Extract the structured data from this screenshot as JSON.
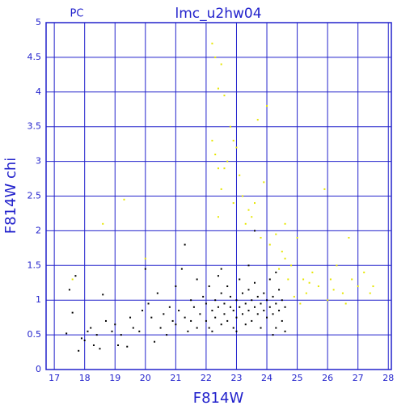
{
  "chart_data": {
    "type": "scatter",
    "title": "lmc_u2hw04",
    "subtitle": "PC",
    "x_label": "F814W",
    "y_label": "F814W chi",
    "xlim": [
      16.73,
      28.1
    ],
    "ylim": [
      0,
      5
    ],
    "xticks": [
      17,
      18,
      19,
      20,
      21,
      22,
      23,
      24,
      25,
      26,
      27,
      28
    ],
    "yticks": [
      0,
      0.5,
      1,
      1.5,
      2,
      2.5,
      3,
      3.5,
      4,
      4.5,
      5
    ],
    "grid": true,
    "grid_color": "#2222cc",
    "series": [
      {
        "color": "#000000",
        "x": [
          17.4,
          17.5,
          17.6,
          17.7,
          17.8,
          17.9,
          18.0,
          18.1,
          18.2,
          18.3,
          18.4,
          18.5,
          18.6,
          18.7,
          18.9,
          19.0,
          19.1,
          19.2,
          19.4,
          19.5,
          19.6,
          19.8,
          19.9,
          20.0,
          20.1,
          20.2,
          20.3,
          20.4,
          20.5,
          20.6,
          20.7,
          20.8,
          20.9,
          21.0,
          21.0,
          21.1,
          21.2,
          21.3,
          21.3,
          21.4,
          21.5,
          21.5,
          21.6,
          21.7,
          21.7,
          21.8,
          21.9,
          22.0,
          22.0,
          22.1,
          22.1,
          22.2,
          22.3,
          22.3,
          22.4,
          22.4,
          22.5,
          22.5,
          22.6,
          22.6,
          22.7,
          22.7,
          22.8,
          22.8,
          22.9,
          22.9,
          23.0,
          23.0,
          23.1,
          23.1,
          23.2,
          23.2,
          23.3,
          23.3,
          23.4,
          23.4,
          23.5,
          23.5,
          23.6,
          23.6,
          23.7,
          23.7,
          23.8,
          23.8,
          23.9,
          23.9,
          24.0,
          24.0,
          24.1,
          24.1,
          24.2,
          24.2,
          24.3,
          24.3,
          24.4,
          24.4,
          24.5,
          24.5,
          24.6,
          24.6,
          23.6,
          22.2,
          23.0,
          24.2,
          22.5,
          23.4,
          24.3
        ],
        "y": [
          0.52,
          1.15,
          0.82,
          1.35,
          0.27,
          0.45,
          0.42,
          0.55,
          0.6,
          0.35,
          0.5,
          0.3,
          1.08,
          0.7,
          0.55,
          0.65,
          0.35,
          0.5,
          0.33,
          0.75,
          0.6,
          0.55,
          0.85,
          1.45,
          0.95,
          0.75,
          0.4,
          1.1,
          0.6,
          0.8,
          0.5,
          0.9,
          0.7,
          1.2,
          0.65,
          0.85,
          1.45,
          0.75,
          1.8,
          0.55,
          1.0,
          0.7,
          0.9,
          1.3,
          0.6,
          0.8,
          1.05,
          0.7,
          0.95,
          1.2,
          0.6,
          0.85,
          1.0,
          0.75,
          1.35,
          0.9,
          0.65,
          1.1,
          0.8,
          0.95,
          1.2,
          0.7,
          0.9,
          1.05,
          0.6,
          0.85,
          1.0,
          0.75,
          1.3,
          0.9,
          0.8,
          1.1,
          0.65,
          0.95,
          1.15,
          0.85,
          0.7,
          1.0,
          0.9,
          1.25,
          0.8,
          1.05,
          0.6,
          0.95,
          1.1,
          0.85,
          0.75,
          1.0,
          1.3,
          0.9,
          0.8,
          1.05,
          0.6,
          0.95,
          1.15,
          0.85,
          0.7,
          1.0,
          0.9,
          0.55,
          2.0,
          0.55,
          0.55,
          0.5,
          1.45,
          1.5,
          1.4
        ]
      },
      {
        "color": "#e6e600",
        "x": [
          17.6,
          18.6,
          19.3,
          20.0,
          22.2,
          22.3,
          22.4,
          22.5,
          22.6,
          22.2,
          22.3,
          22.4,
          22.5,
          22.6,
          22.8,
          22.9,
          23.0,
          23.1,
          22.7,
          22.9,
          23.2,
          23.4,
          23.5,
          23.6,
          23.7,
          23.9,
          24.0,
          22.4,
          23.3,
          23.8,
          24.1,
          24.3,
          24.5,
          24.6,
          24.8,
          25.0,
          25.2,
          25.3,
          25.5,
          25.7,
          25.9,
          26.0,
          26.1,
          26.3,
          26.5,
          26.7,
          26.8,
          27.0,
          27.2,
          27.4,
          27.5,
          24.7,
          24.9,
          25.1,
          25.4,
          26.2,
          26.6,
          24.4,
          24.6
        ],
        "y": [
          1.3,
          2.1,
          2.45,
          1.6,
          4.7,
          4.5,
          4.05,
          4.4,
          3.95,
          3.3,
          3.1,
          2.9,
          2.6,
          2.9,
          3.5,
          3.3,
          3.2,
          2.8,
          3.0,
          2.4,
          2.5,
          2.3,
          2.2,
          2.4,
          3.6,
          2.7,
          3.8,
          2.2,
          2.1,
          1.9,
          1.8,
          1.95,
          1.7,
          2.1,
          1.5,
          1.9,
          1.3,
          1.1,
          1.4,
          1.2,
          2.6,
          1.0,
          1.3,
          1.5,
          1.1,
          1.9,
          1.3,
          1.2,
          1.4,
          1.1,
          1.2,
          1.3,
          1.05,
          0.95,
          1.25,
          1.15,
          0.95,
          1.45,
          1.6
        ]
      }
    ]
  }
}
